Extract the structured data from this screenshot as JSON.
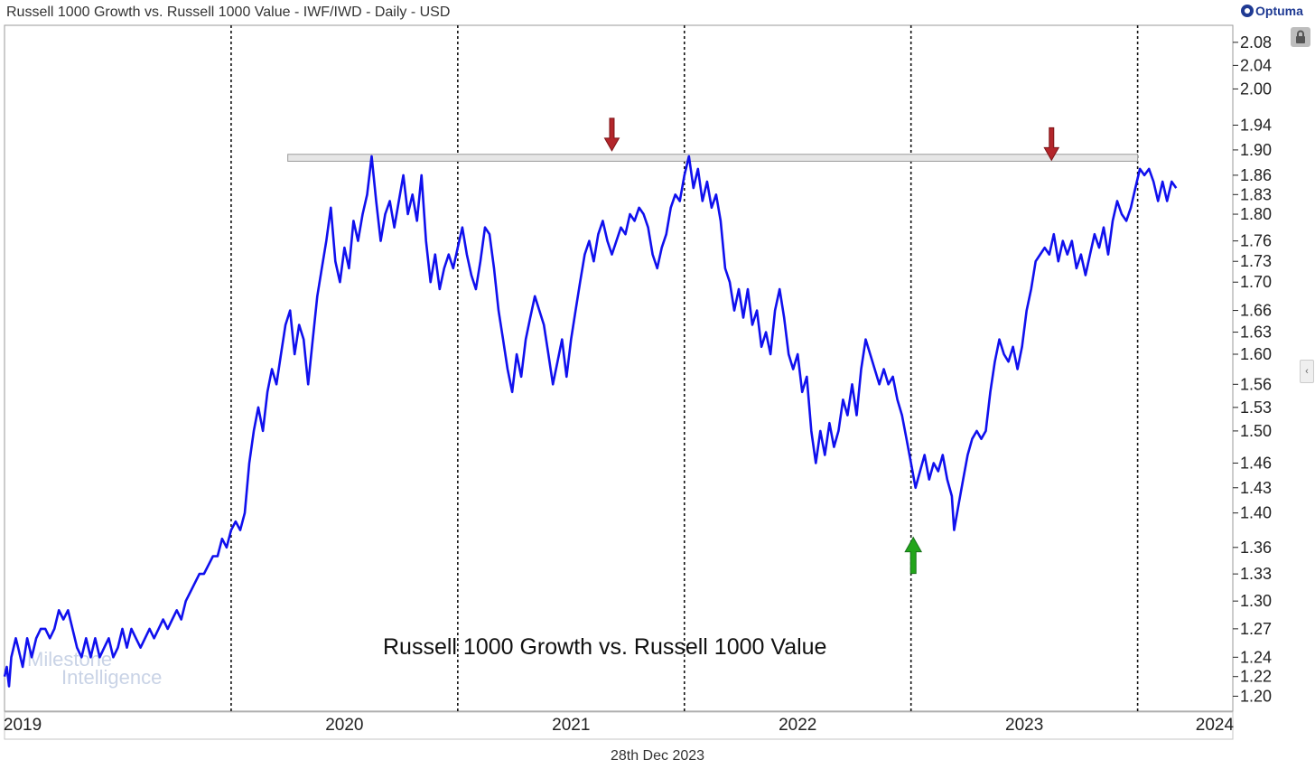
{
  "header": {
    "title": "Russell 1000 Growth vs. Russell 1000 Value - IWF/IWD - Daily - USD",
    "brand": "Optuma"
  },
  "footer": {
    "date": "28th Dec 2023"
  },
  "colors": {
    "series": "#1010ee",
    "down_arrow": "#b3262b",
    "up_arrow": "#22a51a",
    "resistance": "#c8c8c8"
  },
  "icons": {
    "lock": "lock-icon",
    "collapse": "chevron-left-icon"
  },
  "watermark": {
    "line1": "Milestone",
    "line2": "Intelligence"
  },
  "chart_data": {
    "type": "line",
    "title": "Russell 1000 Growth vs. Russell 1000 Value - IWF/IWD - Daily - USD",
    "annotation": "Russell 1000 Growth vs. Russell 1000 Value",
    "y_scale": "log",
    "ylim": [
      1.185,
      2.11
    ],
    "xlim": [
      2019.0,
      2024.42
    ],
    "x_tick_labels": [
      {
        "label": "2019",
        "x": 2019.08
      },
      {
        "label": "2020",
        "x": 2020.5
      },
      {
        "label": "2021",
        "x": 2021.5
      },
      {
        "label": "2022",
        "x": 2022.5
      },
      {
        "label": "2023",
        "x": 2023.5
      },
      {
        "label": "2024",
        "x": 2024.34
      }
    ],
    "year_boundaries": [
      2020.0,
      2021.0,
      2022.0,
      2023.0,
      2024.0
    ],
    "y_ticks": [
      "2.08",
      "2.04",
      "2.00",
      "1.94",
      "1.90",
      "1.86",
      "1.83",
      "1.80",
      "1.76",
      "1.73",
      "1.70",
      "1.66",
      "1.63",
      "1.60",
      "1.56",
      "1.53",
      "1.50",
      "1.46",
      "1.43",
      "1.40",
      "1.36",
      "1.33",
      "1.30",
      "1.27",
      "1.24",
      "1.22",
      "1.20"
    ],
    "resistance_band": {
      "x_start": 2020.25,
      "x_end": 2024.0,
      "y_low": 1.882,
      "y_high": 1.893
    },
    "markers": [
      {
        "type": "down",
        "x": 2021.68,
        "y": 1.89
      },
      {
        "type": "down",
        "x": 2023.62,
        "y": 1.875
      },
      {
        "type": "up",
        "x": 2023.01,
        "y": 1.38
      }
    ],
    "series": [
      {
        "name": "IWF/IWD",
        "points": [
          [
            2019.0,
            1.22
          ],
          [
            2019.01,
            1.23
          ],
          [
            2019.02,
            1.21
          ],
          [
            2019.03,
            1.24
          ],
          [
            2019.05,
            1.26
          ],
          [
            2019.06,
            1.25
          ],
          [
            2019.08,
            1.23
          ],
          [
            2019.1,
            1.26
          ],
          [
            2019.12,
            1.24
          ],
          [
            2019.14,
            1.26
          ],
          [
            2019.16,
            1.27
          ],
          [
            2019.18,
            1.27
          ],
          [
            2019.2,
            1.26
          ],
          [
            2019.22,
            1.27
          ],
          [
            2019.24,
            1.29
          ],
          [
            2019.26,
            1.28
          ],
          [
            2019.28,
            1.29
          ],
          [
            2019.3,
            1.27
          ],
          [
            2019.32,
            1.25
          ],
          [
            2019.34,
            1.24
          ],
          [
            2019.36,
            1.26
          ],
          [
            2019.38,
            1.24
          ],
          [
            2019.4,
            1.26
          ],
          [
            2019.42,
            1.24
          ],
          [
            2019.44,
            1.25
          ],
          [
            2019.46,
            1.26
          ],
          [
            2019.48,
            1.24
          ],
          [
            2019.5,
            1.25
          ],
          [
            2019.52,
            1.27
          ],
          [
            2019.54,
            1.25
          ],
          [
            2019.56,
            1.27
          ],
          [
            2019.58,
            1.26
          ],
          [
            2019.6,
            1.25
          ],
          [
            2019.62,
            1.26
          ],
          [
            2019.64,
            1.27
          ],
          [
            2019.66,
            1.26
          ],
          [
            2019.68,
            1.27
          ],
          [
            2019.7,
            1.28
          ],
          [
            2019.72,
            1.27
          ],
          [
            2019.74,
            1.28
          ],
          [
            2019.76,
            1.29
          ],
          [
            2019.78,
            1.28
          ],
          [
            2019.8,
            1.3
          ],
          [
            2019.82,
            1.31
          ],
          [
            2019.84,
            1.32
          ],
          [
            2019.86,
            1.33
          ],
          [
            2019.88,
            1.33
          ],
          [
            2019.9,
            1.34
          ],
          [
            2019.92,
            1.35
          ],
          [
            2019.94,
            1.35
          ],
          [
            2019.96,
            1.37
          ],
          [
            2019.98,
            1.36
          ],
          [
            2020.0,
            1.38
          ],
          [
            2020.02,
            1.39
          ],
          [
            2020.04,
            1.38
          ],
          [
            2020.06,
            1.4
          ],
          [
            2020.08,
            1.46
          ],
          [
            2020.1,
            1.5
          ],
          [
            2020.12,
            1.53
          ],
          [
            2020.14,
            1.5
          ],
          [
            2020.16,
            1.55
          ],
          [
            2020.18,
            1.58
          ],
          [
            2020.2,
            1.56
          ],
          [
            2020.22,
            1.6
          ],
          [
            2020.24,
            1.64
          ],
          [
            2020.26,
            1.66
          ],
          [
            2020.28,
            1.6
          ],
          [
            2020.3,
            1.64
          ],
          [
            2020.32,
            1.62
          ],
          [
            2020.34,
            1.56
          ],
          [
            2020.36,
            1.62
          ],
          [
            2020.38,
            1.68
          ],
          [
            2020.4,
            1.72
          ],
          [
            2020.42,
            1.76
          ],
          [
            2020.44,
            1.81
          ],
          [
            2020.46,
            1.73
          ],
          [
            2020.48,
            1.7
          ],
          [
            2020.5,
            1.75
          ],
          [
            2020.52,
            1.72
          ],
          [
            2020.54,
            1.79
          ],
          [
            2020.56,
            1.76
          ],
          [
            2020.58,
            1.8
          ],
          [
            2020.6,
            1.83
          ],
          [
            2020.62,
            1.89
          ],
          [
            2020.64,
            1.82
          ],
          [
            2020.66,
            1.76
          ],
          [
            2020.68,
            1.8
          ],
          [
            2020.7,
            1.82
          ],
          [
            2020.72,
            1.78
          ],
          [
            2020.74,
            1.82
          ],
          [
            2020.76,
            1.86
          ],
          [
            2020.78,
            1.8
          ],
          [
            2020.8,
            1.83
          ],
          [
            2020.82,
            1.79
          ],
          [
            2020.84,
            1.86
          ],
          [
            2020.86,
            1.76
          ],
          [
            2020.88,
            1.7
          ],
          [
            2020.9,
            1.74
          ],
          [
            2020.92,
            1.69
          ],
          [
            2020.94,
            1.72
          ],
          [
            2020.96,
            1.74
          ],
          [
            2020.98,
            1.72
          ],
          [
            2021.0,
            1.75
          ],
          [
            2021.02,
            1.78
          ],
          [
            2021.04,
            1.74
          ],
          [
            2021.06,
            1.71
          ],
          [
            2021.08,
            1.69
          ],
          [
            2021.1,
            1.73
          ],
          [
            2021.12,
            1.78
          ],
          [
            2021.14,
            1.77
          ],
          [
            2021.16,
            1.72
          ],
          [
            2021.18,
            1.66
          ],
          [
            2021.2,
            1.62
          ],
          [
            2021.22,
            1.58
          ],
          [
            2021.24,
            1.55
          ],
          [
            2021.26,
            1.6
          ],
          [
            2021.28,
            1.57
          ],
          [
            2021.3,
            1.62
          ],
          [
            2021.32,
            1.65
          ],
          [
            2021.34,
            1.68
          ],
          [
            2021.36,
            1.66
          ],
          [
            2021.38,
            1.64
          ],
          [
            2021.4,
            1.6
          ],
          [
            2021.42,
            1.56
          ],
          [
            2021.44,
            1.59
          ],
          [
            2021.46,
            1.62
          ],
          [
            2021.48,
            1.57
          ],
          [
            2021.5,
            1.62
          ],
          [
            2021.52,
            1.66
          ],
          [
            2021.54,
            1.7
          ],
          [
            2021.56,
            1.74
          ],
          [
            2021.58,
            1.76
          ],
          [
            2021.6,
            1.73
          ],
          [
            2021.62,
            1.77
          ],
          [
            2021.64,
            1.79
          ],
          [
            2021.66,
            1.76
          ],
          [
            2021.68,
            1.74
          ],
          [
            2021.7,
            1.76
          ],
          [
            2021.72,
            1.78
          ],
          [
            2021.74,
            1.77
          ],
          [
            2021.76,
            1.8
          ],
          [
            2021.78,
            1.79
          ],
          [
            2021.8,
            1.81
          ],
          [
            2021.82,
            1.8
          ],
          [
            2021.84,
            1.78
          ],
          [
            2021.86,
            1.74
          ],
          [
            2021.88,
            1.72
          ],
          [
            2021.9,
            1.75
          ],
          [
            2021.92,
            1.77
          ],
          [
            2021.94,
            1.81
          ],
          [
            2021.96,
            1.83
          ],
          [
            2021.98,
            1.82
          ],
          [
            2022.0,
            1.86
          ],
          [
            2022.02,
            1.89
          ],
          [
            2022.04,
            1.84
          ],
          [
            2022.06,
            1.87
          ],
          [
            2022.08,
            1.82
          ],
          [
            2022.1,
            1.85
          ],
          [
            2022.12,
            1.81
          ],
          [
            2022.14,
            1.83
          ],
          [
            2022.16,
            1.79
          ],
          [
            2022.18,
            1.72
          ],
          [
            2022.2,
            1.7
          ],
          [
            2022.22,
            1.66
          ],
          [
            2022.24,
            1.69
          ],
          [
            2022.26,
            1.65
          ],
          [
            2022.28,
            1.69
          ],
          [
            2022.3,
            1.64
          ],
          [
            2022.32,
            1.66
          ],
          [
            2022.34,
            1.61
          ],
          [
            2022.36,
            1.63
          ],
          [
            2022.38,
            1.6
          ],
          [
            2022.4,
            1.66
          ],
          [
            2022.42,
            1.69
          ],
          [
            2022.44,
            1.65
          ],
          [
            2022.46,
            1.6
          ],
          [
            2022.48,
            1.58
          ],
          [
            2022.5,
            1.6
          ],
          [
            2022.52,
            1.55
          ],
          [
            2022.54,
            1.57
          ],
          [
            2022.56,
            1.5
          ],
          [
            2022.58,
            1.46
          ],
          [
            2022.6,
            1.5
          ],
          [
            2022.62,
            1.47
          ],
          [
            2022.64,
            1.51
          ],
          [
            2022.66,
            1.48
          ],
          [
            2022.68,
            1.5
          ],
          [
            2022.7,
            1.54
          ],
          [
            2022.72,
            1.52
          ],
          [
            2022.74,
            1.56
          ],
          [
            2022.76,
            1.52
          ],
          [
            2022.78,
            1.58
          ],
          [
            2022.8,
            1.62
          ],
          [
            2022.82,
            1.6
          ],
          [
            2022.84,
            1.58
          ],
          [
            2022.86,
            1.56
          ],
          [
            2022.88,
            1.58
          ],
          [
            2022.9,
            1.56
          ],
          [
            2022.92,
            1.57
          ],
          [
            2022.94,
            1.54
          ],
          [
            2022.96,
            1.52
          ],
          [
            2022.98,
            1.49
          ],
          [
            2023.0,
            1.46
          ],
          [
            2023.02,
            1.43
          ],
          [
            2023.04,
            1.45
          ],
          [
            2023.06,
            1.47
          ],
          [
            2023.08,
            1.44
          ],
          [
            2023.1,
            1.46
          ],
          [
            2023.12,
            1.45
          ],
          [
            2023.14,
            1.47
          ],
          [
            2023.16,
            1.44
          ],
          [
            2023.18,
            1.42
          ],
          [
            2023.19,
            1.38
          ],
          [
            2023.21,
            1.41
          ],
          [
            2023.23,
            1.44
          ],
          [
            2023.25,
            1.47
          ],
          [
            2023.27,
            1.49
          ],
          [
            2023.29,
            1.5
          ],
          [
            2023.31,
            1.49
          ],
          [
            2023.33,
            1.5
          ],
          [
            2023.35,
            1.55
          ],
          [
            2023.37,
            1.59
          ],
          [
            2023.39,
            1.62
          ],
          [
            2023.41,
            1.6
          ],
          [
            2023.43,
            1.59
          ],
          [
            2023.45,
            1.61
          ],
          [
            2023.47,
            1.58
          ],
          [
            2023.49,
            1.61
          ],
          [
            2023.51,
            1.66
          ],
          [
            2023.53,
            1.69
          ],
          [
            2023.55,
            1.73
          ],
          [
            2023.57,
            1.74
          ],
          [
            2023.59,
            1.75
          ],
          [
            2023.61,
            1.74
          ],
          [
            2023.63,
            1.77
          ],
          [
            2023.65,
            1.73
          ],
          [
            2023.67,
            1.76
          ],
          [
            2023.69,
            1.74
          ],
          [
            2023.71,
            1.76
          ],
          [
            2023.73,
            1.72
          ],
          [
            2023.75,
            1.74
          ],
          [
            2023.77,
            1.71
          ],
          [
            2023.79,
            1.74
          ],
          [
            2023.81,
            1.77
          ],
          [
            2023.83,
            1.75
          ],
          [
            2023.85,
            1.78
          ],
          [
            2023.87,
            1.74
          ],
          [
            2023.89,
            1.79
          ],
          [
            2023.91,
            1.82
          ],
          [
            2023.93,
            1.8
          ],
          [
            2023.95,
            1.79
          ],
          [
            2023.97,
            1.81
          ],
          [
            2023.99,
            1.84
          ],
          [
            2024.01,
            1.87
          ],
          [
            2024.03,
            1.86
          ],
          [
            2024.05,
            1.87
          ],
          [
            2024.07,
            1.85
          ],
          [
            2024.09,
            1.82
          ],
          [
            2024.11,
            1.85
          ],
          [
            2024.13,
            1.82
          ],
          [
            2024.15,
            1.85
          ],
          [
            2024.17,
            1.84
          ]
        ]
      }
    ]
  }
}
